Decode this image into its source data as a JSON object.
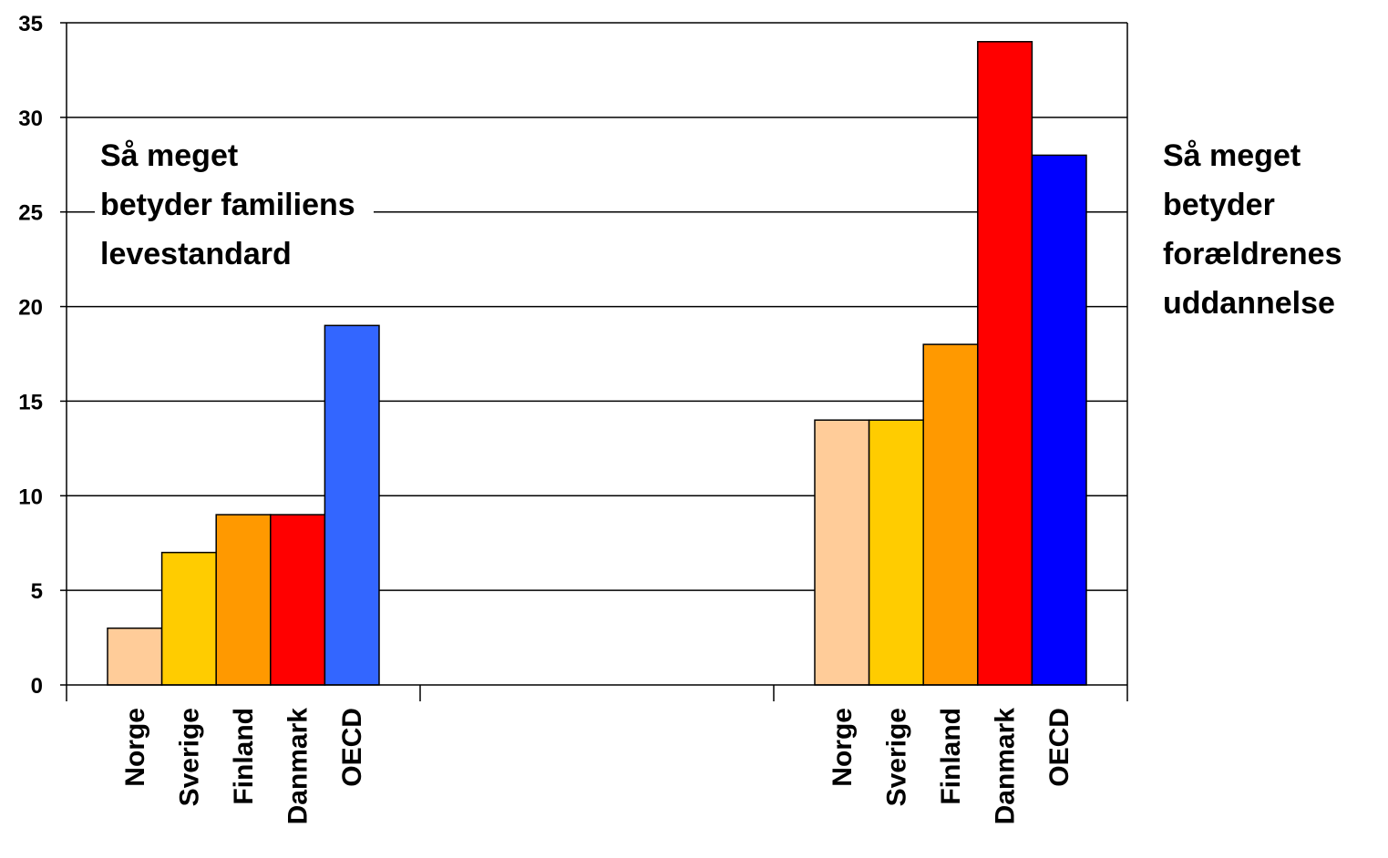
{
  "chart_data": {
    "type": "bar",
    "groups": [
      {
        "annotation": [
          "Så meget",
          "betyder familiens",
          "levestandard"
        ],
        "bars": [
          {
            "category": "Norge",
            "value": 3,
            "color": "#FFCC99"
          },
          {
            "category": "Sverige",
            "value": 7,
            "color": "#FFCC00"
          },
          {
            "category": "Finland",
            "value": 9,
            "color": "#FF9900"
          },
          {
            "category": "Danmark",
            "value": 9,
            "color": "#FF0000"
          },
          {
            "category": "OECD",
            "value": 19,
            "color": "#3366FF"
          }
        ]
      },
      {
        "annotation": [],
        "bars": []
      },
      {
        "annotation": [
          "Så meget",
          "betyder",
          "forældrenes",
          "uddannelse"
        ],
        "bars": [
          {
            "category": "Norge",
            "value": 14,
            "color": "#FFCC99"
          },
          {
            "category": "Sverige",
            "value": 14,
            "color": "#FFCC00"
          },
          {
            "category": "Finland",
            "value": 18,
            "color": "#FF9900"
          },
          {
            "category": "Danmark",
            "value": 34,
            "color": "#FF0000"
          },
          {
            "category": "OECD",
            "value": 28,
            "color": "#0000FF"
          }
        ]
      }
    ],
    "ylim": [
      0,
      35
    ],
    "yticks": [
      0,
      5,
      10,
      15,
      20,
      25,
      30,
      35
    ],
    "grid": true,
    "legend": "none",
    "title": "",
    "xlabel": "",
    "ylabel": ""
  }
}
